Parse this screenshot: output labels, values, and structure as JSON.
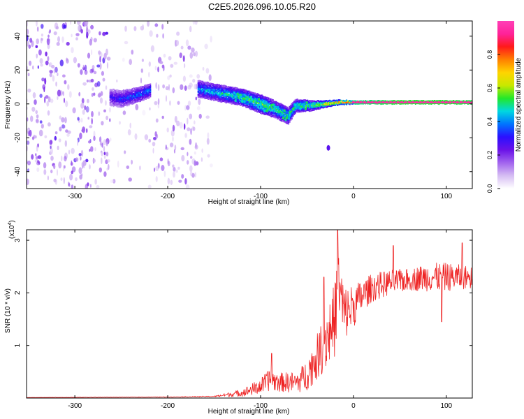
{
  "title": "C2E5.2026.096.10.05.R20",
  "colors": {
    "snr_line": "#ee2222",
    "colorbar_stops": [
      "#ffffff",
      "#d6bdf3",
      "#a264ee",
      "#6a12e8",
      "#2b10ff",
      "#0074ff",
      "#00d8e0",
      "#22e82a",
      "#c8e800",
      "#ffd400",
      "#ff8000",
      "#ff1a1a",
      "#ff2299",
      "#ff3fb6"
    ]
  },
  "chart_data": [
    {
      "type": "heatmap",
      "name": "spectrogram",
      "title": "C2E5.2026.096.10.05.R20",
      "xlabel": "Height of straight line (km)",
      "ylabel": "Frequency (Hz)",
      "xlim": [
        -352,
        128
      ],
      "ylim": [
        -50,
        49
      ],
      "xticks": [
        -300,
        -200,
        -100,
        0,
        100
      ],
      "xtick_labels": [
        "-300",
        "-200",
        "-100",
        "0",
        "100"
      ],
      "yticks": [
        -40,
        -20,
        0,
        20,
        40
      ],
      "ytick_labels": [
        "-40",
        "-20",
        "0",
        "20",
        "40"
      ],
      "noise_regions": [
        {
          "x": [
            -352,
            -262
          ],
          "freq": [
            -50,
            49
          ],
          "level": 0.28
        },
        {
          "x": [
            -262,
            -218
          ],
          "freq": [
            -50,
            49
          ],
          "level": 0.07
        },
        {
          "x": [
            -218,
            -168
          ],
          "freq": [
            -50,
            49
          ],
          "level": 0.2
        },
        {
          "x": [
            -168,
            -152
          ],
          "freq": [
            -50,
            49
          ],
          "level": 0.08
        }
      ],
      "signal_track": [
        {
          "x": -262,
          "center": 4,
          "width": 10,
          "peak": 0.3
        },
        {
          "x": -250,
          "center": 3,
          "width": 10,
          "peak": 0.35
        },
        {
          "x": -235,
          "center": 5,
          "width": 9,
          "peak": 0.4
        },
        {
          "x": -218,
          "center": 8,
          "width": 8,
          "peak": 0.45
        },
        {
          "x": -168,
          "center": 9,
          "width": 10,
          "peak": 0.45
        },
        {
          "x": -140,
          "center": 6,
          "width": 10,
          "peak": 0.5
        },
        {
          "x": -120,
          "center": 4,
          "width": 10,
          "peak": 0.55
        },
        {
          "x": -100,
          "center": 0,
          "width": 11,
          "peak": 0.6
        },
        {
          "x": -85,
          "center": -3,
          "width": 10,
          "peak": 0.55
        },
        {
          "x": -70,
          "center": -7,
          "width": 10,
          "peak": 0.5
        },
        {
          "x": -62,
          "center": -1,
          "width": 8,
          "peak": 0.55
        },
        {
          "x": -45,
          "center": -1,
          "width": 6,
          "peak": 0.6
        },
        {
          "x": -30,
          "center": 0,
          "width": 4,
          "peak": 0.7
        },
        {
          "x": -15,
          "center": 1,
          "width": 3,
          "peak": 0.8
        },
        {
          "x": 0,
          "center": 1,
          "width": 2,
          "peak": 0.9
        },
        {
          "x": 50,
          "center": 1,
          "width": 2,
          "peak": 0.97
        },
        {
          "x": 100,
          "center": 1,
          "width": 2,
          "peak": 0.97
        },
        {
          "x": 128,
          "center": 1,
          "width": 2,
          "peak": 0.95
        }
      ],
      "outlier": {
        "x": -27,
        "freq": -26,
        "level": 0.25
      },
      "colorbar": {
        "label": "Normalized spectral amplitude",
        "range": [
          0,
          1
        ],
        "ticks": [
          0,
          0.2,
          0.4,
          0.6,
          0.8
        ],
        "tick_labels": [
          "0.0",
          "0.2",
          "0.4",
          "0.6",
          "0.8"
        ]
      }
    },
    {
      "type": "line",
      "name": "snr",
      "xlabel": "Height of straight line (km)",
      "ylabel": "SNR (10 * v/v)",
      "scale_label": "(x10",
      "scale_exponent": "4",
      "scale_close": ")",
      "xlim": [
        -352,
        128
      ],
      "ylim": [
        0,
        3.2
      ],
      "xticks": [
        -300,
        -200,
        -100,
        0,
        100
      ],
      "xtick_labels": [
        "-300",
        "-200",
        "-100",
        "0",
        "100"
      ],
      "yticks": [
        1,
        2,
        3
      ],
      "ytick_labels": [
        "1",
        "2",
        "3"
      ],
      "envelope": {
        "x": [
          -352,
          -200,
          -150,
          -120,
          -100,
          -90,
          -80,
          -60,
          -50,
          -40,
          -30,
          -20,
          -17,
          -10,
          0,
          10,
          20,
          40,
          60,
          80,
          100,
          128
        ],
        "y": [
          0.01,
          0.02,
          0.03,
          0.1,
          0.22,
          0.35,
          0.3,
          0.3,
          0.45,
          0.75,
          1.1,
          1.5,
          2.2,
          1.6,
          1.75,
          1.95,
          2.1,
          2.2,
          2.25,
          2.3,
          2.3,
          2.3
        ],
        "amplitude": [
          0.004,
          0.008,
          0.015,
          0.12,
          0.25,
          0.35,
          0.3,
          0.35,
          0.5,
          0.7,
          0.95,
          1.2,
          1.4,
          0.9,
          0.7,
          0.5,
          0.45,
          0.4,
          0.35,
          0.45,
          0.45,
          0.35
        ]
      },
      "spikes": [
        {
          "x": -88,
          "y": 0.85
        },
        {
          "x": -32,
          "y": 2.3
        },
        {
          "x": -17,
          "y": 3.2
        },
        {
          "x": 43,
          "y": 2.9
        },
        {
          "x": 95,
          "y": 1.45
        },
        {
          "x": 117,
          "y": 2.95
        }
      ]
    }
  ]
}
